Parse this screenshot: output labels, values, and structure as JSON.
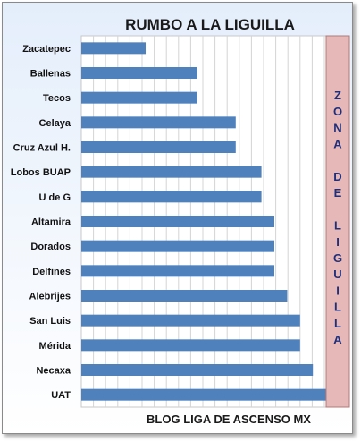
{
  "chart_data": {
    "type": "bar",
    "orientation": "horizontal",
    "title": "RUMBO A LA LIGUILLA",
    "footer": "BLOG LIGA DE ASCENSO MX",
    "categories": [
      "Zacatepec",
      "Ballenas",
      "Tecos",
      "Celaya",
      "Cruz Azul H.",
      "Lobos BUAP",
      "U de G",
      "Altamira",
      "Dorados",
      "Delfines",
      "Alebrijes",
      "San Luis",
      "Mérida",
      "Necaxa",
      "UAT"
    ],
    "values": [
      5,
      9,
      9,
      12,
      12,
      14,
      14,
      15,
      15,
      15,
      16,
      17,
      17,
      18,
      19
    ],
    "xlim": [
      0,
      20
    ],
    "grid": true,
    "bar_color": "#4f81bd",
    "zone": {
      "label_letters": [
        "Z",
        "O",
        "N",
        "A",
        "",
        "D",
        "E",
        "",
        "L",
        "I",
        "G",
        "U",
        "I",
        "L",
        "L",
        "A"
      ],
      "fill_color": "#e6b8b7",
      "text_color": "#1f2f7a"
    }
  }
}
